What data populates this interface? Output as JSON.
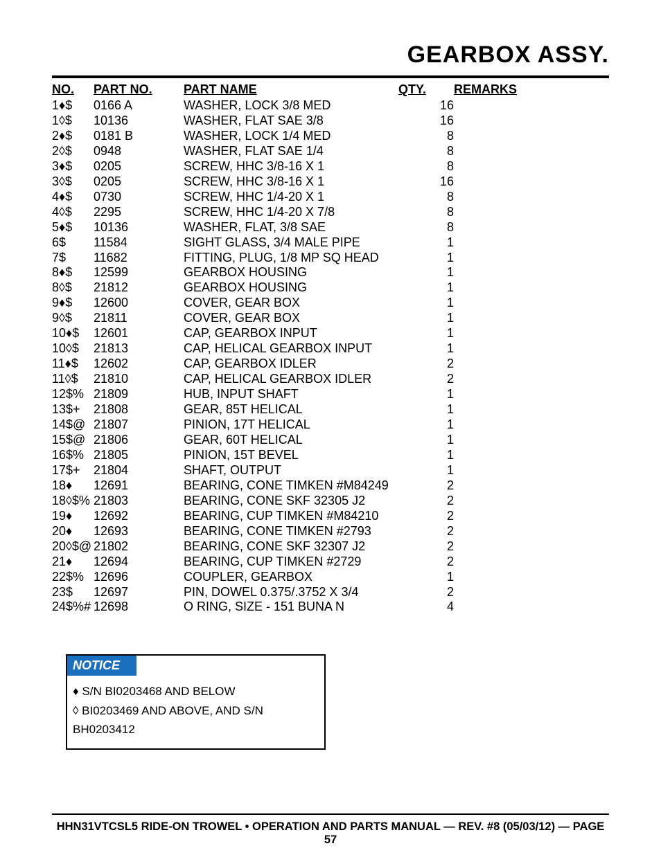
{
  "page_title": "GEARBOX ASSY.",
  "columns": {
    "no": "NO.",
    "part_no": "PART NO.",
    "part_name": "PART NAME",
    "qty": "QTY.",
    "remarks": "REMARKS"
  },
  "rows": [
    {
      "no": "1♦$",
      "pn": "0166 A",
      "name": "WASHER, LOCK  3/8 MED",
      "qty": "16"
    },
    {
      "no": "1◊$",
      "pn": "10136",
      "name": "WASHER, FLAT SAE 3/8",
      "qty": "16"
    },
    {
      "no": "2♦$",
      "pn": "0181 B",
      "name": "WASHER, LOCK  1/4 MED",
      "qty": "8"
    },
    {
      "no": "2◊$",
      "pn": "0948",
      "name": "WASHER, FLAT SAE 1/4",
      "qty": "8"
    },
    {
      "no": "3♦$",
      "pn": "0205",
      "name": "SCREW, HHC 3/8-16 X 1",
      "qty": "8"
    },
    {
      "no": "3◊$",
      "pn": "0205",
      "name": "SCREW, HHC 3/8-16 X 1",
      "qty": "16"
    },
    {
      "no": "4♦$",
      "pn": "0730",
      "name": "SCREW, HHC 1/4-20 X 1",
      "qty": "8"
    },
    {
      "no": "4◊$",
      "pn": "2295",
      "name": "SCREW, HHC 1/4-20 X 7/8",
      "qty": "8"
    },
    {
      "no": "5♦$",
      "pn": "10136",
      "name": "WASHER, FLAT, 3/8 SAE",
      "qty": "8"
    },
    {
      "no": "6$",
      "pn": "11584",
      "name": "SIGHT GLASS, 3/4 MALE PIPE",
      "qty": "1"
    },
    {
      "no": "7$",
      "pn": "11682",
      "name": "FITTING, PLUG, 1/8 MP SQ HEAD",
      "qty": "1"
    },
    {
      "no": "8♦$",
      "pn": "12599",
      "name": "GEARBOX HOUSING",
      "qty": "1"
    },
    {
      "no": "8◊$",
      "pn": "21812",
      "name": "GEARBOX HOUSING",
      "qty": "1"
    },
    {
      "no": "9♦$",
      "pn": "12600",
      "name": "COVER, GEAR BOX",
      "qty": "1"
    },
    {
      "no": "9◊$",
      "pn": "21811",
      "name": "COVER, GEAR BOX",
      "qty": "1"
    },
    {
      "no": "10♦$",
      "pn": "12601",
      "name": "CAP, GEARBOX INPUT",
      "qty": "1"
    },
    {
      "no": "10◊$",
      "pn": "21813",
      "name": "CAP, HELICAL GEARBOX INPUT",
      "qty": "1"
    },
    {
      "no": "11♦$",
      "pn": "12602",
      "name": "CAP, GEARBOX IDLER",
      "qty": "2"
    },
    {
      "no": "11◊$",
      "pn": "21810",
      "name": "CAP, HELICAL GEARBOX IDLER",
      "qty": "2"
    },
    {
      "no": "12$%",
      "pn": "21809",
      "name": "HUB, INPUT SHAFT",
      "qty": "1"
    },
    {
      "no": "13$+",
      "pn": "21808",
      "name": "GEAR, 85T HELICAL",
      "qty": "1"
    },
    {
      "no": "14$@",
      "pn": "21807",
      "name": "PINION, 17T HELICAL",
      "qty": "1"
    },
    {
      "no": "15$@",
      "pn": "21806",
      "name": "GEAR, 60T HELICAL",
      "qty": "1"
    },
    {
      "no": "16$%",
      "pn": "21805",
      "name": "PINION, 15T BEVEL",
      "qty": "1"
    },
    {
      "no": "17$+",
      "pn": "21804",
      "name": "SHAFT, OUTPUT",
      "qty": "1"
    },
    {
      "no": "18♦",
      "pn": "12691",
      "name": "BEARING, CONE TIMKEN #M84249",
      "qty": "2"
    },
    {
      "no": "18◊$%",
      "pn": "21803",
      "name": "BEARING, CONE  SKF 32305 J2",
      "qty": "2"
    },
    {
      "no": "19♦",
      "pn": "12692",
      "name": "BEARING, CUP TIMKEN #M84210",
      "qty": "2"
    },
    {
      "no": "20♦",
      "pn": "12693",
      "name": "BEARING, CONE TIMKEN #2793",
      "qty": "2"
    },
    {
      "no": "20◊$@",
      "pn": "21802",
      "name": "BEARING, CONE SKF 32307 J2",
      "qty": "2"
    },
    {
      "no": "21♦",
      "pn": "12694",
      "name": "BEARING, CUP TIMKEN #2729",
      "qty": "2"
    },
    {
      "no": "22$%",
      "pn": "12696",
      "name": "COUPLER, GEARBOX",
      "qty": "1"
    },
    {
      "no": "23$",
      "pn": "12697",
      "name": "PIN, DOWEL 0.375/.3752 X 3/4",
      "qty": "2"
    },
    {
      "no": "24$%#",
      "pn": "12698",
      "name": "O RING, SIZE - 151 BUNA N",
      "qty": "4"
    }
  ],
  "notice": {
    "header": "NOTICE",
    "line1_sym": "♦",
    "line1_text": "S/N BI0203468 AND BELOW",
    "line2_sym": "◊",
    "line2_text": "BI0203469 AND ABOVE, AND S/N BH0203412"
  },
  "footer": "HHN31VTCSL5 RIDE-ON TROWEL • OPERATION AND PARTS MANUAL — REV. #8 (05/03/12) — PAGE 57",
  "colors": {
    "notice_bg": "#1a6fbf",
    "notice_fg": "#ffffff",
    "text": "#000000",
    "bg": "#ffffff"
  }
}
